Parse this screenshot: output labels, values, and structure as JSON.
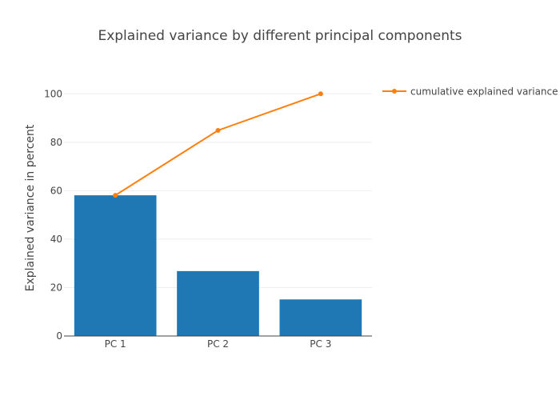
{
  "chart_data": {
    "type": "bar",
    "title": "Explained variance by different principal components",
    "xlabel": "",
    "ylabel": "Explained variance in percent",
    "categories": [
      "PC 1",
      "PC 2",
      "PC 3"
    ],
    "ylim": [
      0,
      110
    ],
    "yticks": [
      0,
      20,
      40,
      60,
      80,
      100
    ],
    "grid": true,
    "legend_position": "top-right",
    "series": [
      {
        "type": "bar",
        "values": [
          58.1,
          26.8,
          15.1
        ],
        "color": "#1f77b4"
      },
      {
        "type": "line",
        "name": "cumulative explained variance",
        "values": [
          58.1,
          84.9,
          100
        ],
        "color": "#ff7f0e"
      }
    ]
  }
}
